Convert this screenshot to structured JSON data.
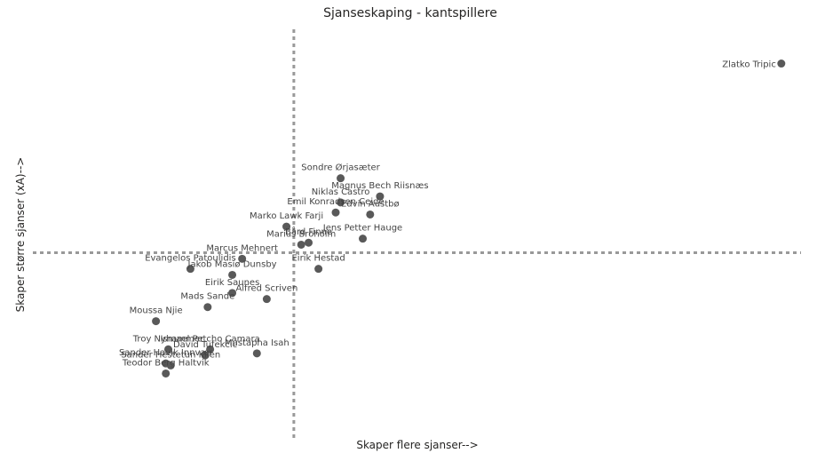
{
  "chart_data": {
    "type": "scatter",
    "title": "Sjanseskaping - kantspillere",
    "xlabel": "Skaper flere sjanser-->",
    "ylabel": "Skaper større sjanser (xA)-->",
    "grid": false,
    "reference_lines": {
      "x": 0,
      "y": 0
    },
    "xlim": [
      -10.6,
      20.6
    ],
    "ylim": [
      -9.2,
      11.1
    ],
    "point_color": "#595959",
    "points": [
      {
        "name": "Zlatko Tripic",
        "x": 19.8,
        "y": 9.4
      },
      {
        "name": "Sondre Ørjasæter",
        "x": 1.9,
        "y": 3.7
      },
      {
        "name": "Magnus Bech Riisnæs",
        "x": 3.5,
        "y": 2.8
      },
      {
        "name": "Niklas Castro",
        "x": 1.9,
        "y": 2.5
      },
      {
        "name": "Emil Konradsen Ceide",
        "x": 1.7,
        "y": 2.0
      },
      {
        "name": "Edvin Austbø",
        "x": 3.1,
        "y": 1.9
      },
      {
        "name": "Marko Lawk Farji",
        "x": -0.3,
        "y": 1.3
      },
      {
        "name": "Jens Petter Hauge",
        "x": 2.8,
        "y": 0.7
      },
      {
        "name": "Bård Finne",
        "x": 0.6,
        "y": 0.5
      },
      {
        "name": "Marius Broholm",
        "x": 0.3,
        "y": 0.4
      },
      {
        "name": "Marcus Mehnert",
        "x": -2.1,
        "y": -0.3
      },
      {
        "name": "Eirik Hestad",
        "x": 1.0,
        "y": -0.8
      },
      {
        "name": "Evangelos Patoulidis",
        "x": -4.2,
        "y": -0.8
      },
      {
        "name": "Jakob Masiø Dunsby",
        "x": -2.5,
        "y": -1.1
      },
      {
        "name": "Alfred Scriven",
        "x": -1.1,
        "y": -2.3
      },
      {
        "name": "Eirik Saunes",
        "x": -2.5,
        "y": -2.0
      },
      {
        "name": "Mads Sande",
        "x": -3.5,
        "y": -2.7
      },
      {
        "name": "Moussa Njie",
        "x": -5.6,
        "y": -3.4
      },
      {
        "name": "Ismael Petcho Camara",
        "x": -3.4,
        "y": -4.8
      },
      {
        "name": "Troy Nyhammer",
        "x": -5.1,
        "y": -4.8
      },
      {
        "name": "Mustapha Isah",
        "x": -1.5,
        "y": -5.0
      },
      {
        "name": "David Tufekcic",
        "x": -3.6,
        "y": -5.1
      },
      {
        "name": "Sander Hestetun Kilen",
        "x": -5.0,
        "y": -5.6
      },
      {
        "name": "Sander Havik Innvær",
        "x": -5.2,
        "y": -5.5
      },
      {
        "name": "Teodor Berg Haltvik",
        "x": -5.2,
        "y": -6.0
      }
    ]
  }
}
